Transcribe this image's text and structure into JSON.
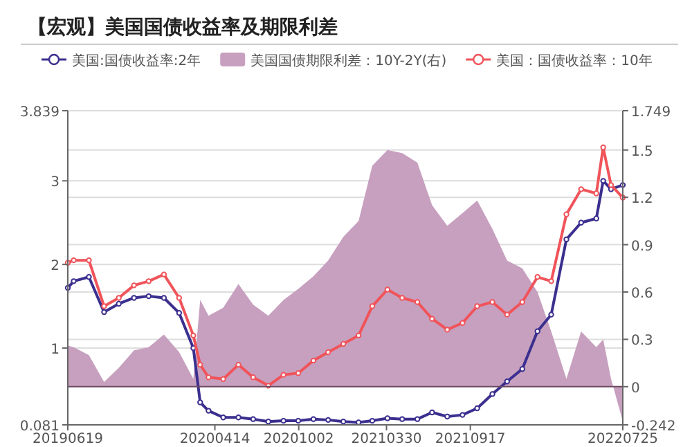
{
  "chart_data": {
    "type": "line",
    "title": "【宏观】美国国债收益率及期限利差",
    "x": [
      "2019-06-19",
      "2019-07-01",
      "2019-08-01",
      "2019-09-01",
      "2019-10-01",
      "2019-11-01",
      "2019-12-01",
      "2020-01-01",
      "2020-02-01",
      "2020-03-01",
      "2020-03-15",
      "2020-04-01",
      "2020-05-01",
      "2020-06-01",
      "2020-07-01",
      "2020-08-01",
      "2020-09-01",
      "2020-10-01",
      "2020-11-01",
      "2020-12-01",
      "2021-01-01",
      "2021-02-01",
      "2021-03-01",
      "2021-04-01",
      "2021-05-01",
      "2021-06-01",
      "2021-07-01",
      "2021-08-01",
      "2021-09-01",
      "2021-10-01",
      "2021-11-01",
      "2021-12-01",
      "2022-01-01",
      "2022-02-01",
      "2022-03-01",
      "2022-04-01",
      "2022-05-01",
      "2022-06-01",
      "2022-06-15",
      "2022-07-01",
      "2022-07-25"
    ],
    "series": [
      {
        "name": "美国:国债收益率:2年",
        "color": "#3b2f8f",
        "marker": "circle",
        "values": [
          1.72,
          1.8,
          1.85,
          1.43,
          1.53,
          1.6,
          1.62,
          1.6,
          1.42,
          1.0,
          0.35,
          0.25,
          0.17,
          0.17,
          0.15,
          0.12,
          0.13,
          0.13,
          0.15,
          0.14,
          0.12,
          0.11,
          0.13,
          0.16,
          0.15,
          0.15,
          0.23,
          0.18,
          0.2,
          0.28,
          0.45,
          0.6,
          0.75,
          1.2,
          1.4,
          2.3,
          2.5,
          2.55,
          3.0,
          2.9,
          2.95
        ]
      },
      {
        "name": "美国国债期限利差：10Y-2Y(右)",
        "type": "area",
        "axis": "y2",
        "color": "#c7a0bf",
        "values": [
          0.26,
          0.25,
          0.2,
          0.03,
          0.12,
          0.23,
          0.25,
          0.33,
          0.22,
          0.05,
          0.55,
          0.45,
          0.5,
          0.65,
          0.52,
          0.45,
          0.55,
          0.62,
          0.7,
          0.8,
          0.95,
          1.05,
          1.4,
          1.5,
          1.48,
          1.42,
          1.15,
          1.02,
          1.1,
          1.18,
          1.0,
          0.8,
          0.75,
          0.6,
          0.35,
          0.05,
          0.35,
          0.25,
          0.3,
          0.05,
          -0.22
        ]
      },
      {
        "name": "美国：国债收益率：10年",
        "color": "#f0545a",
        "marker": "circle",
        "values": [
          2.02,
          2.05,
          2.05,
          1.5,
          1.6,
          1.75,
          1.8,
          1.88,
          1.6,
          1.15,
          0.8,
          0.65,
          0.63,
          0.8,
          0.65,
          0.55,
          0.68,
          0.7,
          0.85,
          0.95,
          1.05,
          1.15,
          1.5,
          1.7,
          1.6,
          1.55,
          1.35,
          1.22,
          1.3,
          1.5,
          1.55,
          1.4,
          1.55,
          1.85,
          1.8,
          2.6,
          2.9,
          2.85,
          3.4,
          2.95,
          2.8
        ]
      }
    ],
    "xlim": [
      "2019-06-19",
      "2022-07-25"
    ],
    "xticks": [
      {
        "value": "2019-06-19",
        "label": "20190619"
      },
      {
        "value": "2020-04-14",
        "label": "20200414"
      },
      {
        "value": "2020-10-02",
        "label": "20201002"
      },
      {
        "value": "2021-03-30",
        "label": "20210330"
      },
      {
        "value": "2021-09-17",
        "label": "20210917"
      },
      {
        "value": "2022-07-25",
        "label": "20220725"
      }
    ],
    "ylim": [
      0.081,
      3.839
    ],
    "yticks": [
      0.081,
      1,
      2,
      3,
      3.839
    ],
    "y2lim": [
      -0.242,
      1.749
    ],
    "y2ticks": [
      -0.242,
      0,
      0.3,
      0.6,
      0.9,
      1.2,
      1.5,
      1.749
    ],
    "grid": "y",
    "legend": "top",
    "line_style": "solid"
  }
}
